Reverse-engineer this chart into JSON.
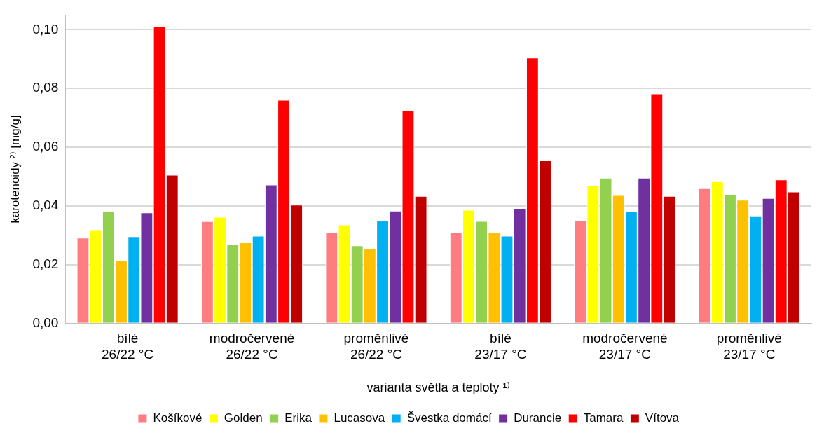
{
  "chart_data": {
    "type": "bar",
    "xlabel": "varianta světla a teploty ¹⁾",
    "ylabel": "karotenoidy ²⁾ [mg/g]",
    "categories": [
      "bílé\n26/22 °C",
      "modročervené\n26/22 °C",
      "proměnlivé\n26/22 °C",
      "bílé\n23/17 °C",
      "modročervené\n23/17 °C",
      "proměnlivé\n23/17 °C"
    ],
    "series": [
      {
        "name": "Košíkové",
        "color": "#ff7c80",
        "values": [
          0.0292,
          0.0348,
          0.031,
          0.0312,
          0.0351,
          0.046
        ]
      },
      {
        "name": "Golden",
        "color": "#ffff00",
        "values": [
          0.032,
          0.0363,
          0.0337,
          0.0387,
          0.047,
          0.0484
        ]
      },
      {
        "name": "Erika",
        "color": "#92d050",
        "values": [
          0.0383,
          0.0271,
          0.0266,
          0.0349,
          0.0496,
          0.044
        ]
      },
      {
        "name": "Lucasova",
        "color": "#ffc000",
        "values": [
          0.0215,
          0.0276,
          0.0257,
          0.031,
          0.0437,
          0.0421
        ]
      },
      {
        "name": "Švestka domácí",
        "color": "#00b0f0",
        "values": [
          0.0297,
          0.0299,
          0.0352,
          0.0299,
          0.0383,
          0.0367
        ]
      },
      {
        "name": "Durancie",
        "color": "#7030a0",
        "values": [
          0.0378,
          0.0473,
          0.0384,
          0.0392,
          0.0496,
          0.0427
        ]
      },
      {
        "name": "Tamara",
        "color": "#ff0000",
        "values": [
          0.1011,
          0.0761,
          0.0726,
          0.0905,
          0.0783,
          0.049
        ]
      },
      {
        "name": "Vítova",
        "color": "#c00000",
        "values": [
          0.0506,
          0.0404,
          0.0434,
          0.0555,
          0.0434,
          0.0449
        ]
      }
    ],
    "ylim": [
      0,
      0.105
    ],
    "yticks": [
      {
        "value": 0,
        "label": "0,00"
      },
      {
        "value": 0.02,
        "label": "0,02"
      },
      {
        "value": 0.04,
        "label": "0,04"
      },
      {
        "value": 0.06,
        "label": "0,06"
      },
      {
        "value": 0.08,
        "label": "0,08"
      },
      {
        "value": 0.1,
        "label": "0,10"
      }
    ],
    "grid": "y",
    "legend": "bottom"
  }
}
